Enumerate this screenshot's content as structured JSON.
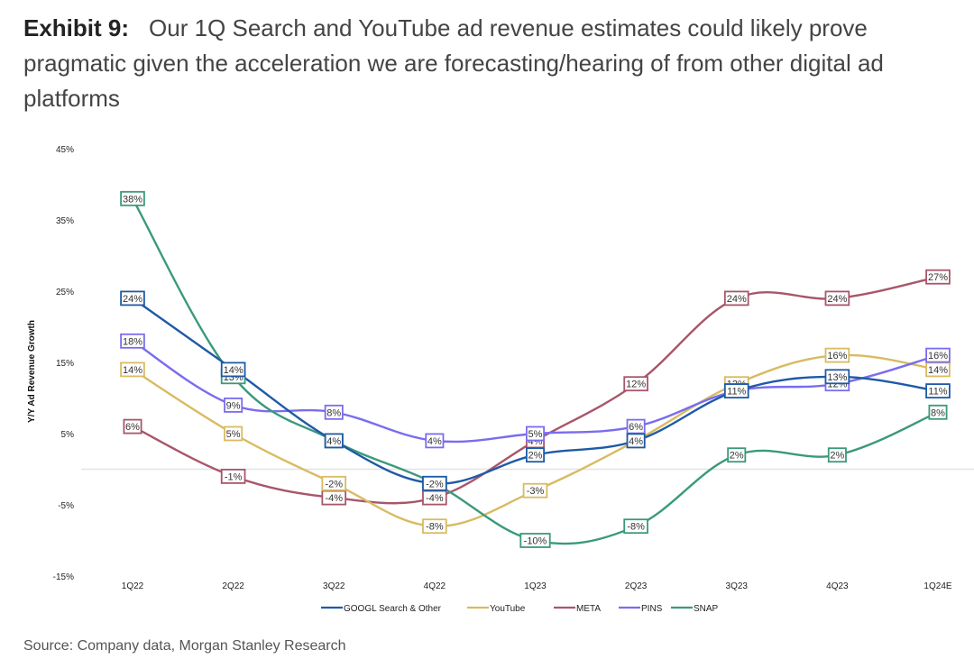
{
  "title": {
    "exhibit": "Exhibit 9:",
    "text": "Our 1Q Search and YouTube ad revenue estimates could likely prove pragmatic given the acceleration we are forecasting/hearing of from other digital ad platforms"
  },
  "source": "Source: Company data, Morgan Stanley Research",
  "chart_data": {
    "type": "line",
    "title": "Our 1Q Search and YouTube ad revenue estimates could likely prove pragmatic given the acceleration we are forecasting/hearing of from other digital ad platforms",
    "xlabel": "",
    "ylabel": "Y/Y Ad Revenue Growth",
    "categories": [
      "1Q22",
      "2Q22",
      "3Q22",
      "4Q22",
      "1Q23",
      "2Q23",
      "3Q23",
      "4Q23",
      "1Q24E"
    ],
    "ylim": [
      -15,
      45
    ],
    "yticks": [
      -15,
      -5,
      5,
      15,
      25,
      35,
      45
    ],
    "ytick_labels": [
      "-15%",
      "-5%",
      "5%",
      "15%",
      "25%",
      "35%",
      "45%"
    ],
    "zero_line": true,
    "grid": false,
    "legend_position": "bottom",
    "series": [
      {
        "name": "GOOGL Search & Other",
        "color": "#1f5aa6",
        "values": [
          24,
          14,
          4,
          -2,
          2,
          4,
          11,
          13,
          11
        ]
      },
      {
        "name": "YouTube",
        "color": "#d8bb62",
        "values": [
          14,
          5,
          -2,
          -8,
          -3,
          4,
          12,
          16,
          14
        ]
      },
      {
        "name": "META",
        "color": "#a8566a",
        "values": [
          6,
          -1,
          -4,
          -4,
          4,
          12,
          24,
          24,
          27
        ]
      },
      {
        "name": "PINS",
        "color": "#7a6cf0",
        "values": [
          18,
          9,
          8,
          4,
          5,
          6,
          11,
          12,
          16
        ]
      },
      {
        "name": "SNAP",
        "color": "#3a9a7a",
        "values": [
          38,
          13,
          4,
          -2,
          -10,
          -8,
          2,
          2,
          8
        ]
      }
    ]
  }
}
